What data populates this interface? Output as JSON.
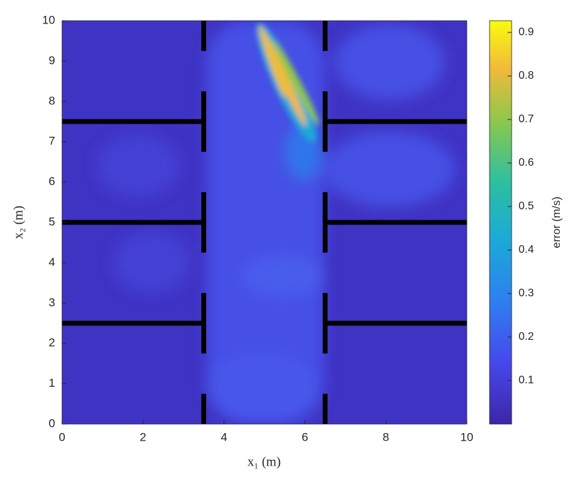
{
  "chart_data": {
    "type": "heatmap",
    "xlabel": "x₁ (m)",
    "ylabel": "x₂ (m)",
    "xlim": [
      0,
      10
    ],
    "ylim": [
      0,
      10
    ],
    "xticks": [
      0,
      2,
      4,
      6,
      8,
      10
    ],
    "yticks": [
      0,
      1,
      2,
      3,
      4,
      5,
      6,
      7,
      8,
      9,
      10
    ],
    "colorbar": {
      "label": "error (m/s)",
      "clim": [
        0,
        0.927
      ],
      "ticks": [
        0.1,
        0.2,
        0.3,
        0.4,
        0.5,
        0.6,
        0.7,
        0.8,
        0.9
      ]
    },
    "walls": [
      [
        3.5,
        9.25,
        3.5,
        10
      ],
      [
        3.5,
        6.75,
        3.5,
        8.25
      ],
      [
        3.5,
        4.25,
        3.5,
        5.75
      ],
      [
        3.5,
        1.75,
        3.5,
        3.25
      ],
      [
        3.5,
        0,
        3.5,
        0.75
      ],
      [
        6.5,
        9.25,
        6.5,
        10
      ],
      [
        6.5,
        6.75,
        6.5,
        8.25
      ],
      [
        6.5,
        4.25,
        6.5,
        5.75
      ],
      [
        6.5,
        1.75,
        6.5,
        3.25
      ],
      [
        6.5,
        0,
        6.5,
        0.75
      ],
      [
        0,
        7.5,
        3.5,
        7.5
      ],
      [
        0,
        5,
        3.5,
        5
      ],
      [
        0,
        2.5,
        3.5,
        2.5
      ],
      [
        6.5,
        7.5,
        10,
        7.5
      ],
      [
        6.5,
        5,
        10,
        5
      ],
      [
        6.5,
        2.5,
        10,
        2.5
      ]
    ]
  }
}
